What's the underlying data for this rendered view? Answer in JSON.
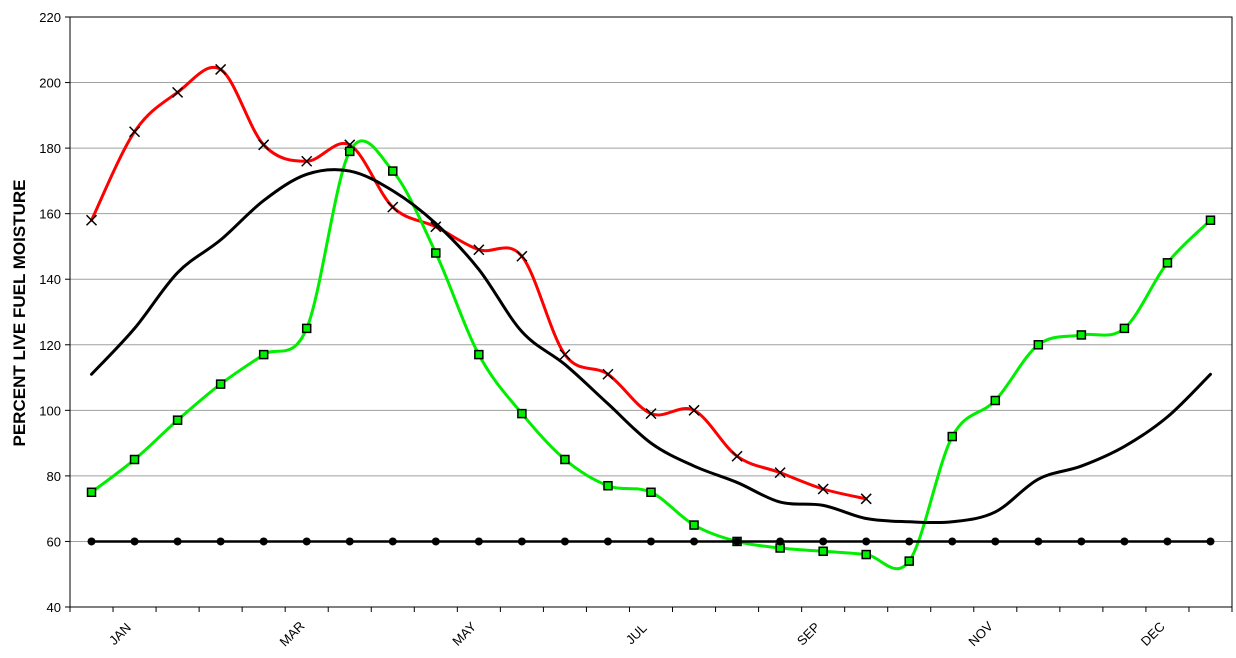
{
  "chart_data": {
    "type": "line",
    "title": "",
    "xlabel": "",
    "ylabel": "PERCENT LIVE FUEL MOISTURE",
    "ylim": [
      40,
      220
    ],
    "yticks": [
      40,
      60,
      80,
      100,
      120,
      140,
      160,
      180,
      200,
      220
    ],
    "grid": "horizontal",
    "legend": "none",
    "x_period_count": 27,
    "month_labels": [
      {
        "label": "JAN",
        "x": 1
      },
      {
        "label": "MAR",
        "x": 5
      },
      {
        "label": "MAY",
        "x": 9
      },
      {
        "label": "JUL",
        "x": 13
      },
      {
        "label": "SEP",
        "x": 17
      },
      {
        "label": "NOV",
        "x": 21
      },
      {
        "label": "DEC",
        "x": 25
      }
    ],
    "series": [
      {
        "color": "#ff0000",
        "marker": "x",
        "values": [
          158,
          185,
          197,
          204,
          181,
          176,
          181,
          162,
          156,
          149,
          147,
          117,
          111,
          99,
          100,
          86,
          81,
          76,
          73
        ]
      },
      {
        "color": "#00ee00",
        "marker": "square",
        "values": [
          75,
          85,
          97,
          108,
          117,
          125,
          179,
          173,
          148,
          117,
          99,
          85,
          77,
          75,
          65,
          60,
          58,
          57,
          56,
          54,
          92,
          103,
          120,
          123,
          125,
          145,
          158
        ]
      },
      {
        "color": "#000000",
        "marker": "none",
        "values": [
          111,
          125,
          142,
          152,
          164,
          172,
          173,
          167,
          157,
          143,
          124,
          114,
          102,
          90,
          83,
          78,
          72,
          71,
          67,
          66,
          66,
          69,
          79,
          83,
          89,
          98,
          111
        ]
      },
      {
        "color": "#000000",
        "marker": "circle",
        "values": [
          60,
          60,
          60,
          60,
          60,
          60,
          60,
          60,
          60,
          60,
          60,
          60,
          60,
          60,
          60,
          60,
          60,
          60,
          60,
          60,
          60,
          60,
          60,
          60,
          60,
          60,
          60
        ]
      }
    ]
  }
}
